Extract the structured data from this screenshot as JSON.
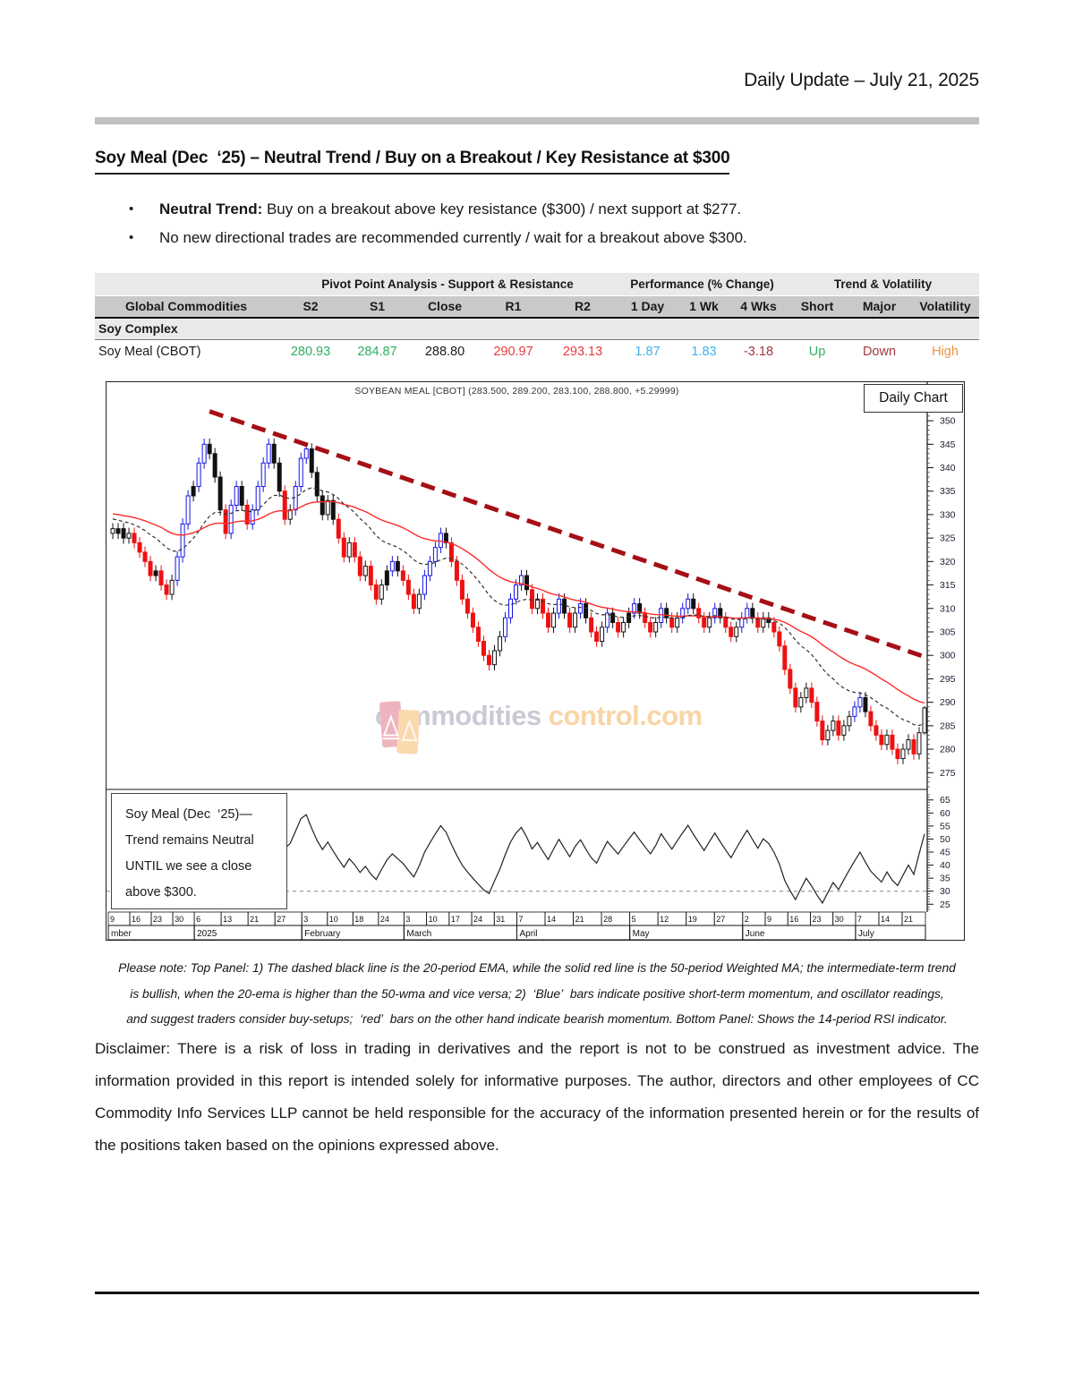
{
  "page": {
    "header_right": "Daily Update – July 21, 2025",
    "section_title": "Soy Meal (Dec  ‘25) – Neutral Trend / Buy on a Breakout / Key Resistance at $300",
    "bullets": [
      {
        "lead": "Neutral Trend:",
        "text": " Buy on a breakout above key resistance ($300) / next support at $277."
      },
      {
        "lead": "",
        "text": "No new directional trades are recommended currently / wait for a breakout above $300."
      }
    ],
    "note_lines": [
      "Please note: Top Panel: 1) The dashed black line is the 20-period EMA, while the solid red line is the 50-period Weighted MA; the intermediate-term trend",
      "is bullish, when the 20-ema is higher than the 50-wma and vice versa; 2)  ‘Blue’  bars indicate positive short-term momentum, and oscillator readings,",
      "and suggest traders consider buy-setups;  ‘red’  bars on the other hand indicate bearish momentum. Bottom Panel: Shows the 14-period RSI indicator."
    ],
    "disclaimer": "Disclaimer: There is a risk of loss in trading in derivatives and the report is not to be construed as investment advice. The information provided in this report is intended solely for informative purposes. The author, directors and other employees of CC Commodity Info Services LLP cannot be held responsible for the accuracy of the information presented herein or for the results of the positions taken based on the opinions expressed above."
  },
  "table": {
    "group_headers": [
      "",
      "Pivot Point Analysis - Support & Resistance",
      "Performance (% Change)",
      "Trend & Volatility"
    ],
    "columns": [
      "Global Commodities",
      "S2",
      "S1",
      "Close",
      "R1",
      "R2",
      "1 Day",
      "1 Wk",
      "4 Wks",
      "Short",
      "Major",
      "Volatility"
    ],
    "section_row": "Soy Complex",
    "row": {
      "name": "Soy Meal (CBOT)",
      "values": [
        {
          "text": "280.93",
          "color": "#2FAE63"
        },
        {
          "text": "284.87",
          "color": "#2FAE63"
        },
        {
          "text": "288.80",
          "color": "#1a1a1a"
        },
        {
          "text": "290.97",
          "color": "#E8393D"
        },
        {
          "text": "293.13",
          "color": "#E8393D"
        },
        {
          "text": "1.87",
          "color": "#41B3E6"
        },
        {
          "text": "1.83",
          "color": "#41B3E6"
        },
        {
          "text": "-3.18",
          "color": "#A4373E"
        },
        {
          "text": "Up",
          "color": "#2FAE63"
        },
        {
          "text": "Down",
          "color": "#A4373E"
        },
        {
          "text": "High",
          "color": "#F0923F"
        }
      ]
    }
  },
  "chart_data": {
    "type": "candlestick",
    "title": "SOYBEAN MEAL [CBOT] (283.500, 289.200, 283.100, 288.800, +5.29999)",
    "panel_label": "Daily Chart",
    "annotation_lines": [
      "Soy Meal (Dec  ‘25)—",
      "Trend remains Neutral",
      "UNTIL we see a close",
      "above $300."
    ],
    "watermark": {
      "part1": "commodities",
      "part2": "control.com"
    },
    "last_bar": {
      "open": 283.5,
      "high": 289.2,
      "low": 283.1,
      "close": 288.8,
      "change": "+5.29999"
    },
    "price_axis": {
      "min": 272,
      "max": 352.5,
      "ticks": [
        350,
        345,
        340,
        335,
        330,
        325,
        320,
        315,
        310,
        305,
        300,
        295,
        290,
        285,
        280,
        275
      ]
    },
    "rsi_axis": {
      "min": 22,
      "max": 68,
      "ticks": [
        65,
        60,
        55,
        50,
        45,
        40,
        35,
        30,
        25
      ],
      "oversold_line": 30
    },
    "months": [
      {
        "label": "mber",
        "days": [
          9,
          16,
          23,
          30
        ],
        "bars": 16
      },
      {
        "label": "2025",
        "days": [
          6,
          13,
          21,
          27
        ],
        "bars": 20
      },
      {
        "label": "February",
        "days": [
          3,
          10,
          18,
          24
        ],
        "bars": 19
      },
      {
        "label": "March",
        "days": [
          3,
          10,
          17,
          24,
          31
        ],
        "bars": 21
      },
      {
        "label": "April",
        "days": [
          7,
          14,
          21,
          28
        ],
        "bars": 21
      },
      {
        "label": "May",
        "days": [
          5,
          12,
          19,
          27
        ],
        "bars": 21
      },
      {
        "label": "June",
        "days": [
          2,
          9,
          16,
          23,
          30
        ],
        "bars": 21
      },
      {
        "label": "July",
        "days": [
          7,
          14,
          21
        ],
        "bars": 13
      }
    ],
    "closes": [
      326,
      327,
      325,
      326,
      324,
      322,
      320,
      317,
      318,
      315,
      313,
      316,
      321,
      328,
      334,
      336,
      341,
      345,
      343,
      338,
      331,
      326,
      332,
      336,
      332,
      328,
      331,
      336,
      341,
      345,
      341,
      335,
      329,
      331,
      336,
      342,
      344,
      339,
      334,
      330,
      333,
      329,
      325,
      321,
      324,
      321,
      317,
      319,
      315,
      312,
      315,
      318,
      320,
      318,
      316,
      313,
      310,
      313,
      317,
      320,
      323,
      326,
      324,
      320,
      316,
      312,
      309,
      306,
      303,
      300,
      298,
      301,
      304,
      308,
      312,
      315,
      317,
      314,
      310,
      312,
      309,
      306,
      309,
      312,
      309,
      306,
      309,
      311,
      308,
      305,
      303,
      306,
      309,
      307,
      305,
      307,
      309,
      311,
      309,
      307,
      305,
      307,
      310,
      308,
      306,
      308,
      310,
      312,
      310,
      308,
      306,
      308,
      310,
      308,
      306,
      304,
      306,
      308,
      310,
      308,
      306,
      308,
      307,
      305,
      302,
      297,
      293,
      289,
      291,
      293,
      290,
      286,
      282,
      284,
      286,
      283,
      285,
      287,
      289,
      291,
      288,
      285,
      283,
      281,
      283,
      280,
      278,
      280,
      282,
      279,
      283.5,
      288.8
    ],
    "candle_colors": "wkkwrrrrkrrwbbbkbbkkkrbbkrbbbbkkrwbbbkkkwkrrwrrwrrwkbkrrrwbbbbkrrrrrrrrwwbbbbkrwrrwbkrwbkrrwbkrwkbkrrwbkrwbbkrrwbkrrwbbkrwkrrrrrwwrrrwwrwwbbkrrrwrrwwrww",
    "ma_seed": [
      342,
      341,
      341,
      340,
      340,
      339,
      339,
      338,
      338,
      337,
      337,
      336,
      336,
      335,
      335,
      334,
      334,
      333,
      333,
      332,
      332,
      331,
      331,
      330,
      330,
      329,
      329,
      328,
      328,
      327,
      327,
      328,
      328,
      329,
      329,
      330,
      329,
      328,
      327,
      326
    ],
    "overlays": {
      "ema_period": 20,
      "wma_period": 50,
      "rsi_period": 14
    },
    "trendline": {
      "from_bar": 18,
      "from_price": 352,
      "to_bar": 152,
      "to_price": 299.5
    },
    "series_colors": {
      "up_blue": "#1414E6",
      "down_red": "#EE1111",
      "neutral": "#111111",
      "wma": "#FF2A2A",
      "ema": "#333333",
      "trend": "#A50F15",
      "rsi": "#222222"
    }
  }
}
